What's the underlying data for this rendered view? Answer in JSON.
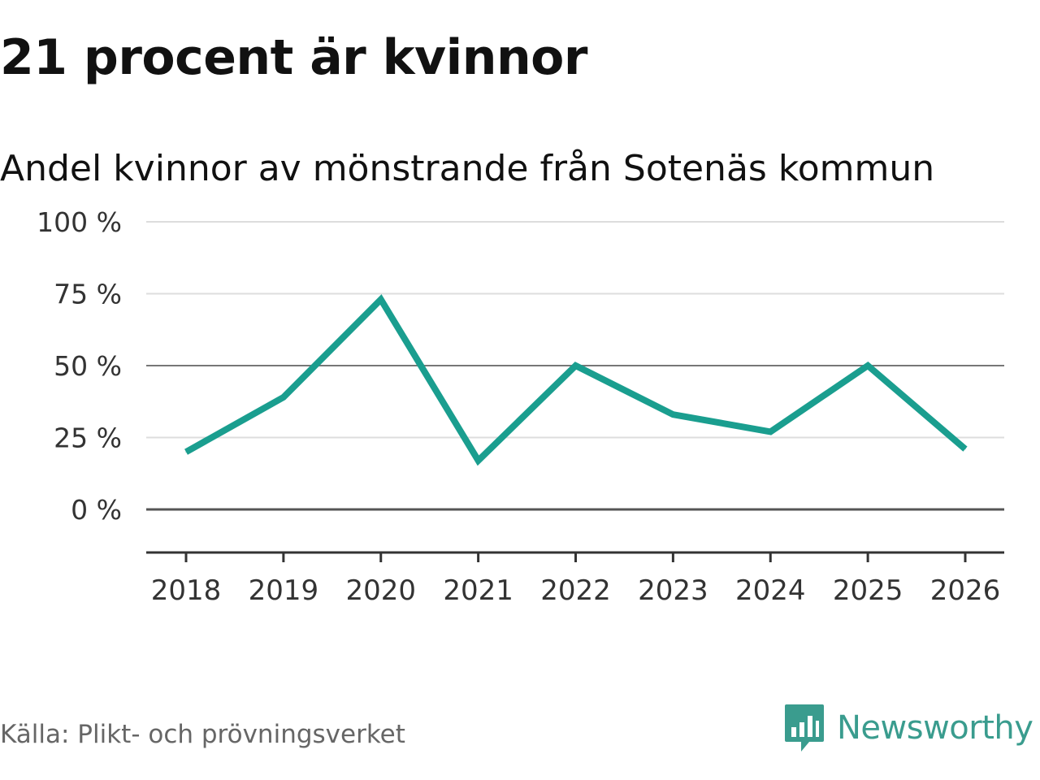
{
  "header": {
    "title": "21 procent är kvinnor",
    "subtitle": "Andel kvinnor av mönstrande från Sotenäs kommun"
  },
  "footer": {
    "source": "Källa: Plikt- och prövningsverket",
    "brand": "Newsworthy",
    "brand_icon": "bar-chart-speech-bubble-icon"
  },
  "colors": {
    "line": "#1a9e8f",
    "grid": "#dddddd",
    "emphasis_line": "#555555",
    "brand": "#3a9c8e"
  },
  "chart_data": {
    "type": "line",
    "x": [
      "2018",
      "2019",
      "2020",
      "2021",
      "2022",
      "2023",
      "2024",
      "2025",
      "2026"
    ],
    "series": [
      {
        "values": [
          20,
          39,
          73,
          17,
          50,
          33,
          27,
          50,
          21
        ]
      }
    ],
    "yticks": [
      0,
      25,
      50,
      75,
      100
    ],
    "ytick_labels": [
      "0 %",
      "25 %",
      "50 %",
      "75 %",
      "100 %"
    ],
    "ylim": [
      -15,
      100
    ],
    "grid": true,
    "legend": "none"
  }
}
